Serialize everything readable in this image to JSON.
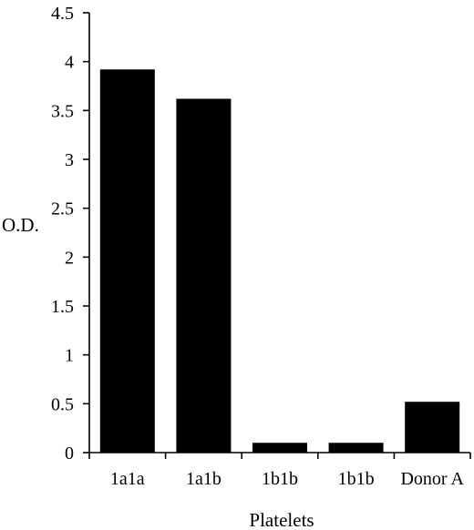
{
  "chart_data": {
    "type": "bar",
    "categories": [
      "1a1a",
      "1a1b",
      "1b1b",
      "1b1b",
      "Donor A"
    ],
    "values": [
      3.92,
      3.62,
      0.1,
      0.1,
      0.52
    ],
    "xlabel": "Platelets",
    "ylabel": "O.D.",
    "ylim": [
      0,
      4.5
    ],
    "yticks": [
      "0",
      "0.5",
      "1",
      "1.5",
      "2",
      "2.5",
      "3",
      "3.5",
      "4",
      "4.5"
    ],
    "grid": false,
    "legend": "none",
    "bar_color": "#000000"
  }
}
